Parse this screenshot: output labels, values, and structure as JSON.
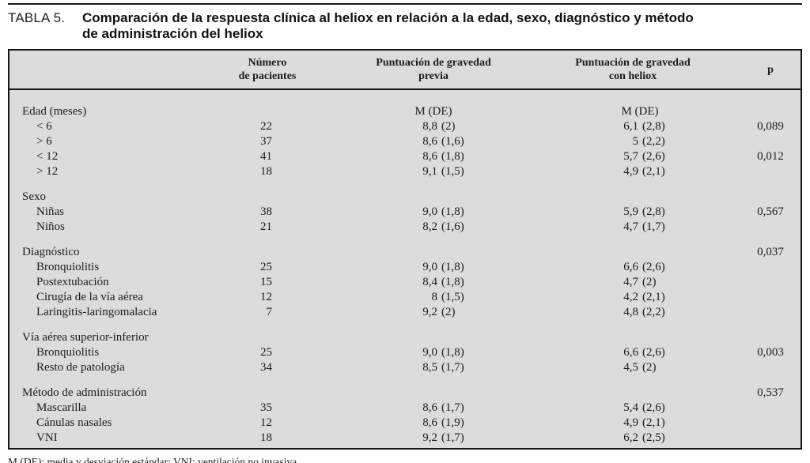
{
  "title": {
    "label": "TABLA 5.",
    "lines": [
      "Comparación de la respuesta clínica al heliox en relación a la edad, sexo, diagnóstico y método",
      "de administración del heliox"
    ]
  },
  "table": {
    "headers": {
      "patients": "Número\nde pacientes",
      "prev": "Puntuación de gravedad\nprevia",
      "heliox": "Puntuación de gravedad\ncon heliox",
      "p": "p"
    },
    "rows": [
      {
        "type": "section",
        "label": "Edad (meses)",
        "prev_center": "M (DE)",
        "hel_center": "M (DE)"
      },
      {
        "type": "item",
        "label": "< 6",
        "n": "22",
        "pm": "8,8",
        "psd": "(2)",
        "hm": "6,1",
        "hsd": "(2,8)",
        "p": "0,089"
      },
      {
        "type": "item",
        "label": "> 6",
        "n": "37",
        "pm": "8,6",
        "psd": "(1,6)",
        "hm": "5",
        "hsd": "(2,2)"
      },
      {
        "type": "item",
        "label": "< 12",
        "n": "41",
        "pm": "8,6",
        "psd": "(1,8)",
        "hm": "5,7",
        "hsd": "(2,6)",
        "p": "0,012"
      },
      {
        "type": "item",
        "label": "> 12",
        "n": "18",
        "pm": "9,1",
        "psd": "(1,5)",
        "hm": "4,9",
        "hsd": "(2,1)"
      },
      {
        "type": "section",
        "label": "Sexo"
      },
      {
        "type": "item",
        "label": "Niñas",
        "n": "38",
        "pm": "9,0",
        "psd": "(1,8)",
        "hm": "5,9",
        "hsd": "(2,8)",
        "p": "0,567"
      },
      {
        "type": "item",
        "label": "Niños",
        "n": "21",
        "pm": "8,2",
        "psd": "(1,6)",
        "hm": "4,7",
        "hsd": "(1,7)"
      },
      {
        "type": "section",
        "label": "Diagnóstico",
        "p": "0,037"
      },
      {
        "type": "item",
        "label": "Bronquiolitis",
        "n": "25",
        "pm": "9,0",
        "psd": "(1,8)",
        "hm": "6,6",
        "hsd": "(2,6)"
      },
      {
        "type": "item",
        "label": "Postextubación",
        "n": "15",
        "pm": "8,4",
        "psd": "(1,8)",
        "hm": "4,7",
        "hsd": "(2)"
      },
      {
        "type": "item",
        "label": "Cirugía de la vía aérea",
        "n": "12",
        "pm": "8",
        "psd": "(1,5)",
        "hm": "4,2",
        "hsd": "(2,1)"
      },
      {
        "type": "item",
        "label": "Laringitis-laringomalacia",
        "n": "7",
        "pm": "9,2",
        "psd": "(2)",
        "hm": "4,8",
        "hsd": "(2,2)"
      },
      {
        "type": "section",
        "label": "Vía aérea superior-inferior"
      },
      {
        "type": "item",
        "label": "Bronquiolitis",
        "n": "25",
        "pm": "9,0",
        "psd": "(1,8)",
        "hm": "6,6",
        "hsd": "(2,6)",
        "p": "0,003"
      },
      {
        "type": "item",
        "label": "Resto de patología",
        "n": "34",
        "pm": "8,5",
        "psd": "(1,7)",
        "hm": "4,5",
        "hsd": "(2)"
      },
      {
        "type": "section",
        "label": "Método de administración",
        "p": "0,537"
      },
      {
        "type": "item",
        "label": "Mascarilla",
        "n": "35",
        "pm": "8,6",
        "psd": "(1,7)",
        "hm": "5,4",
        "hsd": "(2,6)"
      },
      {
        "type": "item",
        "label": "Cánulas nasales",
        "n": "12",
        "pm": "8,6",
        "psd": "(1,9)",
        "hm": "4,9",
        "hsd": "(2,1)"
      },
      {
        "type": "item",
        "label": "VNI",
        "n": "18",
        "pm": "9,2",
        "psd": "(1,7)",
        "hm": "6,2",
        "hsd": "(2,5)"
      }
    ]
  },
  "footnote": "M (DE): media y desviación estándar; VNI: ventilación no invasiva.",
  "colors": {
    "table_background": "#dcdcdc",
    "border": "#161616",
    "text": "#1c1c1c"
  }
}
